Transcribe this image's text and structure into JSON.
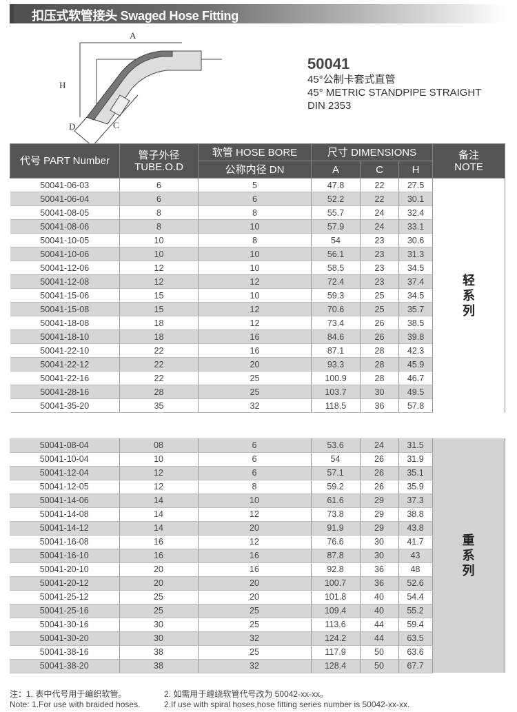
{
  "header": {
    "title": "扣压式软管接头  Swaged Hose Fitting"
  },
  "product": {
    "code": "50041",
    "name_cn": "45°公制卡套式直管",
    "name_en": "45° METRIC STANDPIPE STRAIGHT",
    "standard": "DIN 2353"
  },
  "diagram": {
    "labels": [
      "A",
      "H",
      "D",
      "C"
    ]
  },
  "table": {
    "headers": {
      "part": "代号 PART Number",
      "tube_cn": "管子外径",
      "tube_en": "TUBE.O.D",
      "bore": "软管 HOSE BORE",
      "bore_sub": "公称内径 DN",
      "dims": "尺寸 DIMENSIONS",
      "a": "A",
      "c": "C",
      "h": "H",
      "note_cn": "备注",
      "note_en": "NOTE"
    },
    "light_label": [
      "轻",
      "系",
      "列"
    ],
    "heavy_label": [
      "重",
      "系",
      "列"
    ],
    "light_rows": [
      [
        "50041-06-03",
        "6",
        "5",
        "47.8",
        "22",
        "27.5"
      ],
      [
        "50041-06-04",
        "6",
        "6",
        "52.2",
        "22",
        "30.1"
      ],
      [
        "50041-08-05",
        "8",
        "8",
        "55.7",
        "24",
        "32.4"
      ],
      [
        "50041-08-06",
        "8",
        "10",
        "57.9",
        "24",
        "33.1"
      ],
      [
        "50041-10-05",
        "10",
        "8",
        "54",
        "23",
        "30.6"
      ],
      [
        "50041-10-06",
        "10",
        "10",
        "56.1",
        "23",
        "31.3"
      ],
      [
        "50041-12-06",
        "12",
        "10",
        "58.5",
        "23",
        "34.5"
      ],
      [
        "50041-12-08",
        "12",
        "12",
        "72.4",
        "23",
        "37.4"
      ],
      [
        "50041-15-06",
        "15",
        "10",
        "59.3",
        "25",
        "34.5"
      ],
      [
        "50041-15-08",
        "15",
        "12",
        "70.6",
        "25",
        "35.7"
      ],
      [
        "50041-18-08",
        "18",
        "12",
        "73.4",
        "26",
        "38.5"
      ],
      [
        "50041-18-10",
        "18",
        "16",
        "84.6",
        "26",
        "39.8"
      ],
      [
        "50041-22-10",
        "22",
        "16",
        "87.1",
        "28",
        "42.3"
      ],
      [
        "50041-22-12",
        "22",
        "20",
        "93.3",
        "28",
        "45.9"
      ],
      [
        "50041-22-16",
        "22",
        "25",
        "100.9",
        "28",
        "46.7"
      ],
      [
        "50041-28-16",
        "28",
        "25",
        "103.7",
        "30",
        "49.5"
      ],
      [
        "50041-35-20",
        "35",
        "32",
        "118.5",
        "36",
        "57.8"
      ]
    ],
    "heavy_rows": [
      [
        "50041-08-04",
        "08",
        "6",
        "53.6",
        "24",
        "31.5"
      ],
      [
        "50041-10-04",
        "10",
        "6",
        "54",
        "26",
        "31.9"
      ],
      [
        "50041-12-04",
        "12",
        "6",
        "57.1",
        "26",
        "35.1"
      ],
      [
        "50041-12-05",
        "12",
        "8",
        "59.2",
        "26",
        "35.9"
      ],
      [
        "50041-14-06",
        "14",
        "10",
        "61.6",
        "29",
        "37.3"
      ],
      [
        "50041-14-08",
        "14",
        "12",
        "73.8",
        "29",
        "38.8"
      ],
      [
        "50041-14-12",
        "14",
        "20",
        "91.9",
        "29",
        "43.8"
      ],
      [
        "50041-16-08",
        "16",
        "12",
        "76.6",
        "30",
        "41.7"
      ],
      [
        "50041-16-10",
        "16",
        "16",
        "87.8",
        "30",
        "43"
      ],
      [
        "50041-20-10",
        "20",
        "16",
        "92.8",
        "36",
        "48"
      ],
      [
        "50041-20-12",
        "20",
        "20",
        "100.7",
        "36",
        "52.6"
      ],
      [
        "50041-25-12",
        "25",
        "20",
        "101.8",
        "40",
        "54.4"
      ],
      [
        "50041-25-16",
        "25",
        "25",
        "109.4",
        "40",
        "55.2"
      ],
      [
        "50041-30-16",
        "30",
        "25",
        "113.6",
        "44",
        "59.4"
      ],
      [
        "50041-30-20",
        "30",
        "32",
        "124.2",
        "44",
        "63.5"
      ],
      [
        "50041-38-16",
        "38",
        "25",
        "117.9",
        "50",
        "63.6"
      ],
      [
        "50041-38-20",
        "38",
        "32",
        "128.4",
        "50",
        "67.7"
      ]
    ]
  },
  "notes": {
    "cn1": "注：1. 表中代号用于编织软管。",
    "cn2": "2. 如需用于缠绕软管代号改为 50042-xx-xx。",
    "en1": "Note: 1.For use with braided hoses.",
    "en2": "2.If use with spiral hoses,hose fitting series number is 50042-xx-xx."
  }
}
